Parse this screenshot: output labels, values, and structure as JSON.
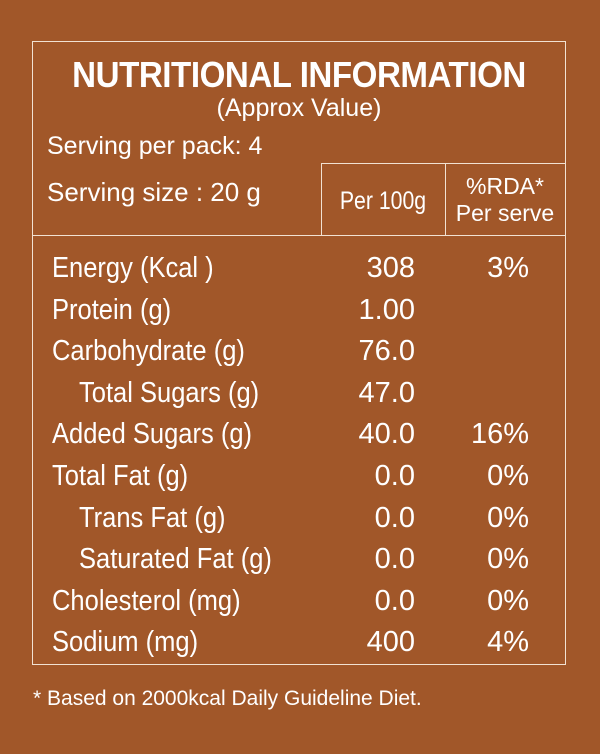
{
  "title": "NUTRITIONAL INFORMATION",
  "subtitle": "(Approx Value)",
  "serving_per_pack": "Serving per pack: 4",
  "serving_size": "Serving size : 20 g",
  "headers": {
    "per_100g": "Per 100g",
    "rda": "%RDA*",
    "rda_sub": "Per serve"
  },
  "rows": [
    {
      "name": "Energy (Kcal )",
      "per100": "308",
      "rda": "3%"
    },
    {
      "name": "Protein (g)",
      "per100": "1.00",
      "rda": ""
    },
    {
      "name": "Carbohydrate (g)",
      "per100": "76.0",
      "rda": ""
    },
    {
      "name": "Total Sugars (g)",
      "per100": "47.0",
      "rda": ""
    },
    {
      "name": "Added Sugars (g)",
      "per100": "40.0",
      "rda": "16%"
    },
    {
      "name": "Total Fat (g)",
      "per100": "0.0",
      "rda": "0%"
    },
    {
      "name": "Trans Fat (g)",
      "per100": "0.0",
      "rda": "0%"
    },
    {
      "name": "Saturated Fat (g)",
      "per100": "0.0",
      "rda": "0%"
    },
    {
      "name": "Cholesterol (mg)",
      "per100": "0.0",
      "rda": "0%"
    },
    {
      "name": "Sodium (mg)",
      "per100": "400",
      "rda": "4%"
    }
  ],
  "footnote": "* Based on 2000kcal Daily Guideline Diet.",
  "colors": {
    "background": "#a15729",
    "text": "#ffffff",
    "border": "#f2e2d2"
  }
}
